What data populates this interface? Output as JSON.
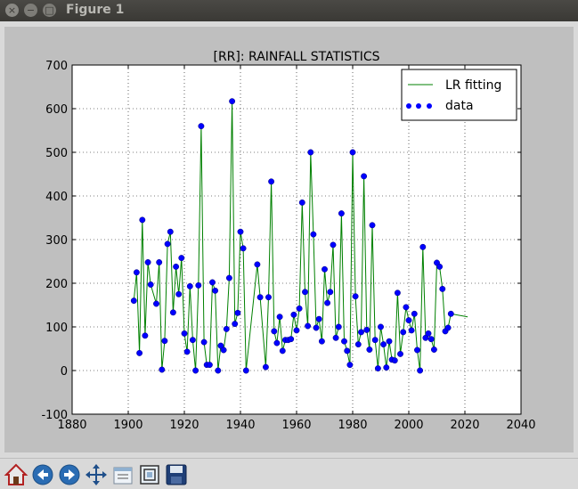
{
  "window": {
    "title": "Figure 1",
    "close_glyph": "×",
    "minimize_glyph": "−",
    "maximize_glyph": "□"
  },
  "toolbar": {
    "buttons": [
      "home-icon",
      "back-arrow-icon",
      "forward-arrow-icon",
      "pan-icon",
      "configure-subplots-icon",
      "zoom-rect-icon",
      "save-icon"
    ]
  },
  "chart_data": {
    "type": "scatter",
    "title": "[RR]: RAINFALL STATISTICS",
    "xlabel": "",
    "ylabel": "",
    "xlim": [
      1880,
      2040
    ],
    "ylim": [
      -100,
      700
    ],
    "xticks": [
      1880,
      1900,
      1920,
      1940,
      1960,
      1980,
      2000,
      2020,
      2040
    ],
    "yticks": [
      -100,
      0,
      100,
      200,
      300,
      400,
      500,
      600,
      700
    ],
    "grid": true,
    "legend": "top-right",
    "series": [
      {
        "name": "LR fitting",
        "type": "line",
        "color": "#008000",
        "x": [
          1902,
          1903,
          1904,
          1905,
          1906,
          1907,
          1908,
          1910,
          1911,
          1912,
          1913,
          1914,
          1915,
          1916,
          1917,
          1918,
          1919,
          1920,
          1921,
          1922,
          1923,
          1924,
          1925,
          1926,
          1927,
          1928,
          1929,
          1930,
          1931,
          1932,
          1933,
          1934,
          1935,
          1936,
          1937,
          1938,
          1939,
          1940,
          1941,
          1942,
          1946,
          1947,
          1949,
          1950,
          1951,
          1952,
          1953,
          1954,
          1955,
          1956,
          1957,
          1958,
          1959,
          1960,
          1961,
          1962,
          1963,
          1964,
          1965,
          1966,
          1967,
          1968,
          1969,
          1970,
          1971,
          1972,
          1973,
          1974,
          1975,
          1976,
          1977,
          1978,
          1979,
          1980,
          1981,
          1982,
          1983,
          1984,
          1985,
          1986,
          1987,
          1988,
          1989,
          1990,
          1991,
          1992,
          1993,
          1994,
          1995,
          1996,
          1997,
          1998,
          1999,
          2000,
          2001,
          2002,
          2003,
          2004,
          2005,
          2006,
          2007,
          2008,
          2009,
          2010,
          2011,
          2012,
          2013,
          2014,
          2015,
          2021
        ],
        "y": [
          160,
          225,
          40,
          345,
          80,
          248,
          197,
          153,
          248,
          2,
          68,
          290,
          318,
          133,
          238,
          175,
          258,
          85,
          43,
          193,
          70,
          0,
          195,
          560,
          65,
          13,
          13,
          202,
          183,
          0,
          57,
          47,
          95,
          212,
          617,
          107,
          132,
          318,
          280,
          0,
          243,
          168,
          8,
          168,
          433,
          90,
          63,
          123,
          45,
          70,
          70,
          72,
          128,
          92,
          142,
          385,
          180,
          102,
          500,
          312,
          98,
          118,
          67,
          232,
          155,
          180,
          288,
          75,
          100,
          360,
          67,
          45,
          13,
          500,
          170,
          60,
          88,
          445,
          93,
          48,
          333,
          70,
          5,
          100,
          60,
          7,
          67,
          25,
          23,
          178,
          38,
          88,
          145,
          115,
          92,
          130,
          47,
          0,
          283,
          75,
          85,
          72,
          48,
          247,
          238,
          187,
          90,
          98,
          130,
          123
        ]
      },
      {
        "name": "data",
        "type": "scatter",
        "color": "#0000ff",
        "x": [
          1902,
          1903,
          1904,
          1905,
          1906,
          1907,
          1908,
          1910,
          1911,
          1912,
          1913,
          1914,
          1915,
          1916,
          1917,
          1918,
          1919,
          1920,
          1921,
          1922,
          1923,
          1924,
          1925,
          1926,
          1927,
          1928,
          1929,
          1930,
          1931,
          1932,
          1933,
          1934,
          1935,
          1936,
          1937,
          1938,
          1939,
          1940,
          1941,
          1942,
          1946,
          1947,
          1949,
          1950,
          1951,
          1952,
          1953,
          1954,
          1955,
          1956,
          1957,
          1958,
          1959,
          1960,
          1961,
          1962,
          1963,
          1964,
          1965,
          1966,
          1967,
          1968,
          1969,
          1970,
          1971,
          1972,
          1973,
          1974,
          1975,
          1976,
          1977,
          1978,
          1979,
          1980,
          1981,
          1982,
          1983,
          1984,
          1985,
          1986,
          1987,
          1988,
          1989,
          1990,
          1991,
          1992,
          1993,
          1994,
          1995,
          1996,
          1997,
          1998,
          1999,
          2000,
          2001,
          2002,
          2003,
          2004,
          2005,
          2006,
          2007,
          2008,
          2009,
          2010,
          2011,
          2012,
          2013,
          2014,
          2015
        ],
        "y": [
          160,
          225,
          40,
          345,
          80,
          248,
          197,
          153,
          248,
          2,
          68,
          290,
          318,
          133,
          238,
          175,
          258,
          85,
          43,
          193,
          70,
          0,
          195,
          560,
          65,
          13,
          13,
          202,
          183,
          0,
          57,
          47,
          95,
          212,
          617,
          107,
          132,
          318,
          280,
          0,
          243,
          168,
          8,
          168,
          433,
          90,
          63,
          123,
          45,
          70,
          70,
          72,
          128,
          92,
          142,
          385,
          180,
          102,
          500,
          312,
          98,
          118,
          67,
          232,
          155,
          180,
          288,
          75,
          100,
          360,
          67,
          45,
          13,
          500,
          170,
          60,
          88,
          445,
          93,
          48,
          333,
          70,
          5,
          100,
          60,
          7,
          67,
          25,
          23,
          178,
          38,
          88,
          145,
          115,
          92,
          130,
          47,
          0,
          283,
          75,
          85,
          72,
          48,
          247,
          238,
          187,
          90,
          98,
          130
        ]
      }
    ]
  }
}
